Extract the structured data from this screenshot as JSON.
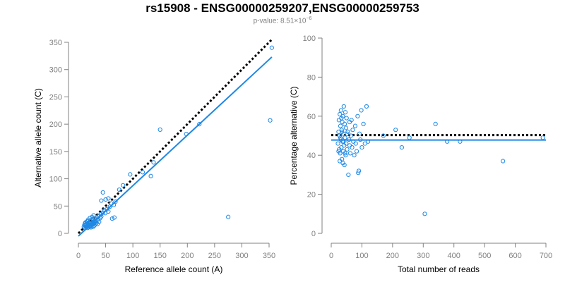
{
  "header": {
    "title": "rs15908 - ENSG00000259207,ENSG00000259753",
    "pvalue_prefix": "p-value: 8.51×10",
    "pvalue_exponent": "−6"
  },
  "colors": {
    "points": "#1e88e5",
    "fit_line": "#1e88e5",
    "reference_line": "#000000",
    "axis": "#808080",
    "tick_text": "#808080",
    "label_text": "#000000"
  },
  "chart_data": [
    {
      "type": "scatter",
      "xlabel": "Reference allele count (A)",
      "ylabel": "Alternative allele count (C)",
      "xlim": [
        0,
        350
      ],
      "ylim": [
        0,
        350
      ],
      "xticks": [
        "0",
        "50",
        "100",
        "150",
        "200",
        "250",
        "300",
        "350"
      ],
      "yticks": [
        "0",
        "50",
        "100",
        "150",
        "200",
        "250",
        "300",
        "350"
      ],
      "grid": false,
      "reference_line": {
        "style": "dotted",
        "x": [
          0,
          355
        ],
        "y": [
          0,
          355
        ]
      },
      "fit_line": {
        "style": "solid",
        "x": [
          0,
          355
        ],
        "y": [
          -5,
          323
        ]
      },
      "points": [
        [
          10,
          12
        ],
        [
          11,
          15
        ],
        [
          12,
          10
        ],
        [
          12,
          18
        ],
        [
          13,
          14
        ],
        [
          13,
          20
        ],
        [
          14,
          12
        ],
        [
          14,
          16
        ],
        [
          15,
          11
        ],
        [
          15,
          19
        ],
        [
          16,
          14
        ],
        [
          16,
          22
        ],
        [
          17,
          10
        ],
        [
          17,
          17
        ],
        [
          18,
          13
        ],
        [
          18,
          25
        ],
        [
          19,
          15
        ],
        [
          19,
          20
        ],
        [
          20,
          12
        ],
        [
          20,
          18
        ],
        [
          21,
          14
        ],
        [
          21,
          28
        ],
        [
          22,
          16
        ],
        [
          22,
          22
        ],
        [
          23,
          11
        ],
        [
          23,
          19
        ],
        [
          24,
          13
        ],
        [
          24,
          24
        ],
        [
          25,
          15
        ],
        [
          25,
          30
        ],
        [
          26,
          17
        ],
        [
          26,
          21
        ],
        [
          27,
          12
        ],
        [
          27,
          26
        ],
        [
          28,
          18
        ],
        [
          28,
          33
        ],
        [
          29,
          14
        ],
        [
          29,
          22
        ],
        [
          30,
          20
        ],
        [
          30,
          27
        ],
        [
          31,
          16
        ],
        [
          32,
          23
        ],
        [
          33,
          19
        ],
        [
          34,
          29
        ],
        [
          35,
          17
        ],
        [
          36,
          25
        ],
        [
          37,
          32
        ],
        [
          38,
          21
        ],
        [
          40,
          28
        ],
        [
          41,
          35
        ],
        [
          42,
          31
        ],
        [
          45,
          38
        ],
        [
          47,
          42
        ],
        [
          49,
          37
        ],
        [
          52,
          44
        ],
        [
          55,
          40
        ],
        [
          58,
          49
        ],
        [
          60,
          55
        ],
        [
          62,
          27
        ],
        [
          66,
          29
        ],
        [
          42,
          60
        ],
        [
          45,
          75
        ],
        [
          50,
          62
        ],
        [
          55,
          64
        ],
        [
          65,
          52
        ],
        [
          68,
          58
        ],
        [
          75,
          80
        ],
        [
          82,
          88
        ],
        [
          95,
          108
        ],
        [
          118,
          112
        ],
        [
          133,
          105
        ],
        [
          138,
          130
        ],
        [
          150,
          190
        ],
        [
          198,
          182
        ],
        [
          222,
          200
        ],
        [
          275,
          30
        ],
        [
          352,
          207
        ],
        [
          355,
          340
        ]
      ]
    },
    {
      "type": "scatter",
      "xlabel": "Total number of reads",
      "ylabel": "Percentage alternative (C)",
      "xlim": [
        0,
        700
      ],
      "ylim": [
        0,
        100
      ],
      "xticks": [
        "0",
        "100",
        "200",
        "300",
        "400",
        "500",
        "600",
        "700"
      ],
      "yticks": [
        "0",
        "20",
        "40",
        "60",
        "80",
        "100"
      ],
      "grid": false,
      "reference_line": {
        "style": "dotted",
        "x": [
          0,
          700
        ],
        "y": [
          50.3,
          50.3
        ]
      },
      "fit_line": {
        "style": "solid",
        "x": [
          0,
          700
        ],
        "y": [
          47.8,
          47.8
        ]
      },
      "points": [
        [
          22,
          46
        ],
        [
          24,
          52
        ],
        [
          25,
          58
        ],
        [
          26,
          43
        ],
        [
          27,
          50
        ],
        [
          28,
          61
        ],
        [
          29,
          41
        ],
        [
          30,
          55
        ],
        [
          31,
          48
        ],
        [
          32,
          63
        ],
        [
          33,
          44
        ],
        [
          34,
          53
        ],
        [
          35,
          38
        ],
        [
          36,
          57
        ],
        [
          37,
          47
        ],
        [
          38,
          60
        ],
        [
          39,
          42
        ],
        [
          40,
          51
        ],
        [
          41,
          65
        ],
        [
          42,
          45
        ],
        [
          43,
          35
        ],
        [
          44,
          56
        ],
        [
          45,
          49
        ],
        [
          46,
          62
        ],
        [
          47,
          40
        ],
        [
          48,
          54
        ],
        [
          49,
          46
        ],
        [
          50,
          59
        ],
        [
          52,
          43
        ],
        [
          54,
          52
        ],
        [
          56,
          30
        ],
        [
          58,
          48
        ],
        [
          60,
          57
        ],
        [
          62,
          41
        ],
        [
          64,
          50
        ],
        [
          66,
          58
        ],
        [
          68,
          44
        ],
        [
          70,
          53
        ],
        [
          72,
          47
        ],
        [
          75,
          40
        ],
        [
          78,
          55
        ],
        [
          80,
          46
        ],
        [
          83,
          42
        ],
        [
          86,
          60
        ],
        [
          88,
          31
        ],
        [
          90,
          32
        ],
        [
          92,
          51
        ],
        [
          95,
          48
        ],
        [
          98,
          63
        ],
        [
          100,
          44
        ],
        [
          105,
          56
        ],
        [
          110,
          46
        ],
        [
          115,
          65
        ],
        [
          120,
          47
        ],
        [
          170,
          50
        ],
        [
          210,
          53
        ],
        [
          230,
          44
        ],
        [
          255,
          49
        ],
        [
          305,
          10
        ],
        [
          340,
          56
        ],
        [
          378,
          47
        ],
        [
          420,
          47
        ],
        [
          560,
          37
        ],
        [
          690,
          49
        ],
        [
          24,
          42
        ],
        [
          28,
          37
        ],
        [
          33,
          59
        ],
        [
          38,
          36
        ],
        [
          45,
          41
        ],
        [
          52,
          51
        ],
        [
          60,
          45
        ],
        [
          35,
          52
        ],
        [
          40,
          47
        ],
        [
          30,
          49
        ]
      ]
    }
  ]
}
